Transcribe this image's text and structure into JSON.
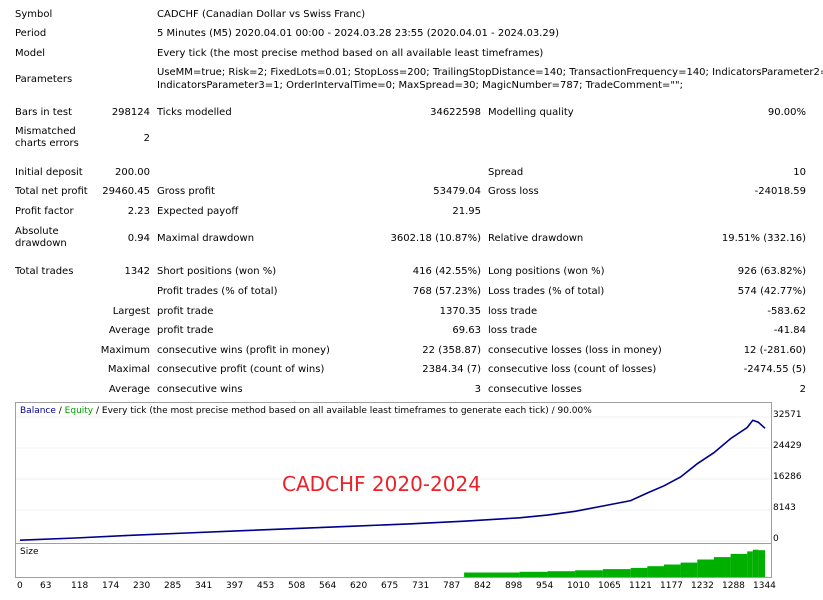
{
  "report": {
    "symbol": {
      "label": "Symbol",
      "value": "CADCHF (Canadian Dollar vs Swiss Franc)"
    },
    "period": {
      "label": "Period",
      "value": "5 Minutes (M5) 2020.04.01 00:00 - 2024.03.28 23:55 (2020.04.01 - 2024.03.29)"
    },
    "model": {
      "label": "Model",
      "value": "Every tick (the most precise method based on all available least timeframes)"
    },
    "parameters": {
      "label": "Parameters",
      "line1": "UseMM=true; Risk=2; FixedLots=0.01; StopLoss=200; TrailingStopDistance=140; TransactionFrequency=140; IndicatorsParameter2=11;",
      "line2": "IndicatorsParameter3=1; OrderIntervalTime=0; MaxSpread=30; MagicNumber=787; TradeComment=\"\";"
    },
    "bars": {
      "label": "Bars in test",
      "value": "298124",
      "ticks_label": "Ticks modelled",
      "ticks_value": "34622598",
      "quality_label": "Modelling quality",
      "quality_value": "90.00%"
    },
    "mismatched": {
      "label": "Mismatched charts errors",
      "value": "2"
    },
    "deposit": {
      "label": "Initial deposit",
      "value": "200.00",
      "spread_label": "Spread",
      "spread_value": "10"
    },
    "netprofit": {
      "label": "Total net profit",
      "value": "29460.45",
      "gp_label": "Gross profit",
      "gp_value": "53479.04",
      "gl_label": "Gross loss",
      "gl_value": "-24018.59"
    },
    "pf": {
      "label": "Profit factor",
      "value": "2.23",
      "ep_label": "Expected payoff",
      "ep_value": "21.95"
    },
    "absdd": {
      "label": "Absolute drawdown",
      "value": "0.94",
      "md_label": "Maximal drawdown",
      "md_value": "3602.18 (10.87%)",
      "rd_label": "Relative drawdown",
      "rd_value": "19.51% (332.16)"
    },
    "trades": {
      "label": "Total trades",
      "value": "1342",
      "sp_label": "Short positions (won %)",
      "sp_value": "416 (42.55%)",
      "lp_label": "Long positions (won %)",
      "lp_value": "926 (63.82%)"
    },
    "ptrades": {
      "label": "Profit trades (% of total)",
      "value": "768 (57.23%)",
      "lt_label": "Loss trades (% of total)",
      "lt_value": "574 (42.77%)"
    },
    "largest": {
      "prefix": "Largest",
      "label": "profit trade",
      "value": "1370.35",
      "loss_label": "loss trade",
      "loss_value": "-583.62"
    },
    "average": {
      "prefix": "Average",
      "label": "profit trade",
      "value": "69.63",
      "loss_label": "loss trade",
      "loss_value": "-41.84"
    },
    "maximum": {
      "prefix": "Maximum",
      "label": "consecutive wins (profit in money)",
      "value": "22 (358.87)",
      "loss_label": "consecutive losses (loss in money)",
      "loss_value": "12 (-281.60)"
    },
    "maximal": {
      "prefix": "Maximal",
      "label": "consecutive profit (count of wins)",
      "value": "2384.34 (7)",
      "loss_label": "consecutive loss (count of losses)",
      "loss_value": "-2474.55 (5)"
    },
    "average2": {
      "prefix": "Average",
      "label": "consecutive wins",
      "value": "3",
      "loss_label": "consecutive losses",
      "loss_value": "2"
    }
  },
  "chart": {
    "legend_balance": "Balance",
    "legend_sep": " / ",
    "legend_equity": "Equity",
    "legend_rest": " / Every tick (the most precise method based on all available least timeframes to generate each tick) / 90.00%",
    "watermark": "CADCHF 2020-2024",
    "size_label": "Size",
    "balance_color": "#00008b",
    "equity_color": "#00a000",
    "size_color": "#00b000",
    "y_ticks": [
      "32571",
      "24429",
      "16286",
      "8143",
      "0"
    ],
    "x_ticks": [
      "0",
      "63",
      "118",
      "174",
      "230",
      "285",
      "341",
      "397",
      "453",
      "508",
      "564",
      "620",
      "675",
      "731",
      "787",
      "842",
      "898",
      "954",
      "1010",
      "1065",
      "1121",
      "1177",
      "1232",
      "1288",
      "1344"
    ]
  },
  "chart_data": {
    "type": "line",
    "xlabel": "",
    "ylabel": "",
    "ylim": [
      0,
      32571
    ],
    "xlim": [
      0,
      1342
    ],
    "series": [
      {
        "name": "Balance",
        "x": [
          0,
          100,
          200,
          300,
          400,
          500,
          600,
          700,
          800,
          900,
          950,
          1000,
          1050,
          1100,
          1130,
          1160,
          1190,
          1220,
          1250,
          1280,
          1310,
          1320,
          1330,
          1342
        ],
        "values": [
          200,
          800,
          1500,
          2100,
          2700,
          3300,
          3900,
          4500,
          5200,
          6100,
          6800,
          7800,
          9200,
          10600,
          12600,
          14500,
          16800,
          20300,
          23200,
          26900,
          29800,
          31700,
          31200,
          29600
        ]
      }
    ]
  }
}
